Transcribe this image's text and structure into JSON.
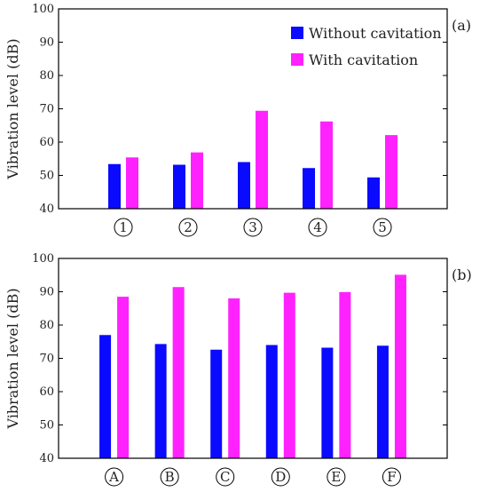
{
  "colors": {
    "without": "#0a0aff",
    "with": "#ff22ff",
    "axis": "#000000"
  },
  "chart_data": [
    {
      "type": "bar",
      "panel_label": "(a)",
      "ylabel": "Vibration level (dB)",
      "ylim": [
        40,
        100
      ],
      "yticks": [
        40,
        50,
        60,
        70,
        80,
        90,
        100
      ],
      "categories": [
        "1",
        "2",
        "3",
        "4",
        "5"
      ],
      "series": [
        {
          "name": "Without cavitation",
          "values": [
            53.4,
            53.2,
            54.0,
            52.2,
            49.4
          ]
        },
        {
          "name": "With cavitation",
          "values": [
            55.4,
            56.9,
            69.4,
            66.2,
            62.1
          ]
        }
      ],
      "legend_position": "top-right",
      "grid": false
    },
    {
      "type": "bar",
      "panel_label": "(b)",
      "ylabel": "Vibration level (dB)",
      "ylim": [
        40,
        100
      ],
      "yticks": [
        40,
        50,
        60,
        70,
        80,
        90,
        100
      ],
      "categories": [
        "A",
        "B",
        "C",
        "D",
        "E",
        "F"
      ],
      "series": [
        {
          "name": "Without cavitation",
          "values": [
            77.0,
            74.3,
            72.6,
            74.0,
            73.2,
            73.8
          ]
        },
        {
          "name": "With cavitation",
          "values": [
            88.5,
            91.4,
            88.0,
            89.7,
            89.9,
            95.1
          ]
        }
      ],
      "grid": false
    }
  ]
}
